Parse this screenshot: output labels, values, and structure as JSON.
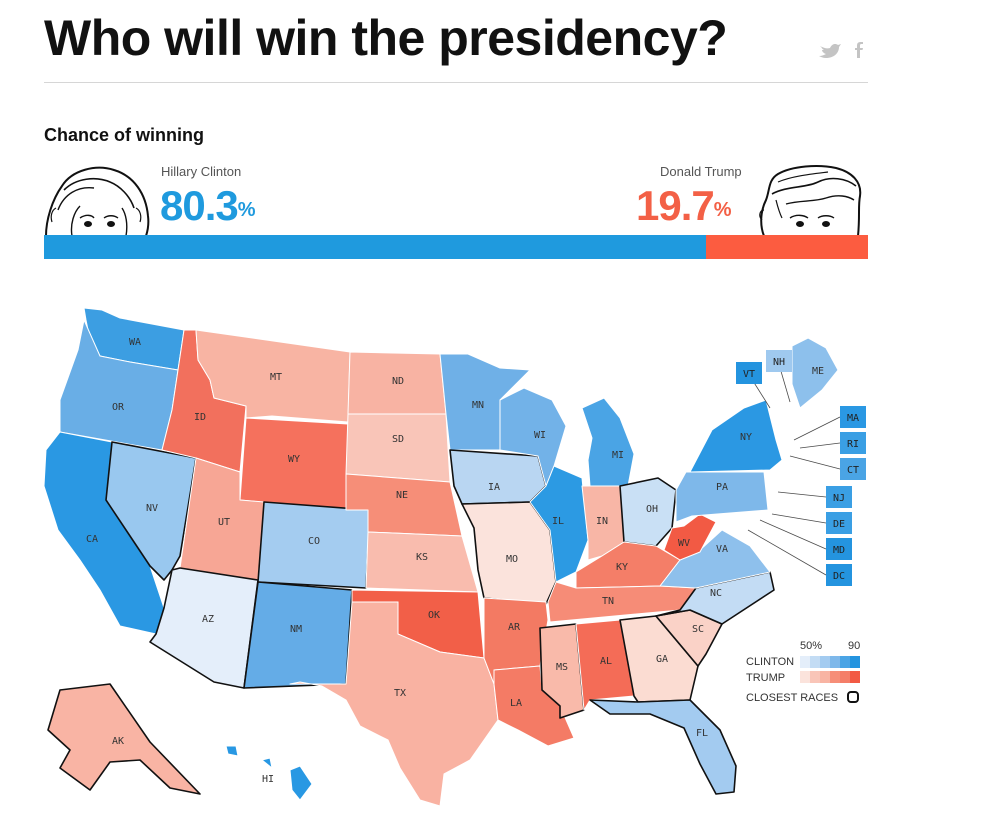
{
  "header": {
    "title": "Who will win the presidency?",
    "share_icons": [
      "twitter-icon",
      "facebook-icon"
    ]
  },
  "chance": {
    "heading": "Chance of winning",
    "clinton": {
      "name": "Hillary Clinton",
      "pct": "80.3",
      "pct_value": 80.3,
      "color": "#1f9ade"
    },
    "trump": {
      "name": "Donald Trump",
      "pct": "19.7",
      "pct_value": 19.7,
      "color": "#fc5c40"
    },
    "percent_sign": "%"
  },
  "map": {
    "states": [
      {
        "code": "WA",
        "color": "#3c9ee2"
      },
      {
        "code": "OR",
        "color": "#69aee6"
      },
      {
        "code": "CA",
        "color": "#2a98e3"
      },
      {
        "code": "NV",
        "color": "#99c8ef"
      },
      {
        "code": "ID",
        "color": "#f2705d"
      },
      {
        "code": "MT",
        "color": "#f8b4a3"
      },
      {
        "code": "WY",
        "color": "#f5715d"
      },
      {
        "code": "UT",
        "color": "#f7a695"
      },
      {
        "code": "AZ",
        "color": "#e4eefa"
      },
      {
        "code": "CO",
        "color": "#a4ccf0"
      },
      {
        "code": "NM",
        "color": "#64ace7"
      },
      {
        "code": "ND",
        "color": "#f8b3a3"
      },
      {
        "code": "SD",
        "color": "#f9c5b8"
      },
      {
        "code": "NE",
        "color": "#f68e78"
      },
      {
        "code": "KS",
        "color": "#f9bcae"
      },
      {
        "code": "OK",
        "color": "#f25f48"
      },
      {
        "code": "TX",
        "color": "#f9b2a2"
      },
      {
        "code": "MN",
        "color": "#6fb0e7"
      },
      {
        "code": "IA",
        "color": "#b9d6f2"
      },
      {
        "code": "MO",
        "color": "#fbe3dc"
      },
      {
        "code": "AR",
        "color": "#f37a63"
      },
      {
        "code": "LA",
        "color": "#f47b65"
      },
      {
        "code": "WI",
        "color": "#72b2e8"
      },
      {
        "code": "IL",
        "color": "#2c9ae3"
      },
      {
        "code": "MI",
        "color": "#4aa4e5"
      },
      {
        "code": "IN",
        "color": "#f8b6a6"
      },
      {
        "code": "OH",
        "color": "#c9e0f5"
      },
      {
        "code": "KY",
        "color": "#f47e68"
      },
      {
        "code": "TN",
        "color": "#f68c77"
      },
      {
        "code": "MS",
        "color": "#f9baaa"
      },
      {
        "code": "AL",
        "color": "#f46c57"
      },
      {
        "code": "GA",
        "color": "#fbdcd2"
      },
      {
        "code": "FL",
        "color": "#a3cbf0"
      },
      {
        "code": "SC",
        "color": "#fad2c7"
      },
      {
        "code": "NC",
        "color": "#c3dcf4"
      },
      {
        "code": "VA",
        "color": "#8ec0ec"
      },
      {
        "code": "WV",
        "color": "#f25a44"
      },
      {
        "code": "PA",
        "color": "#7eb8ea"
      },
      {
        "code": "NY",
        "color": "#2b98e3"
      },
      {
        "code": "ME",
        "color": "#8dc0ec"
      },
      {
        "code": "AK",
        "color": "#f9b4a4"
      },
      {
        "code": "HI",
        "color": "#2898e3"
      }
    ],
    "box_states": [
      {
        "code": "VT",
        "color": "#2494df"
      },
      {
        "code": "NH",
        "color": "#9fc9ef"
      },
      {
        "code": "MA",
        "color": "#2a98e3"
      },
      {
        "code": "RI",
        "color": "#3a9fe4"
      },
      {
        "code": "CT",
        "color": "#4aa4e5"
      },
      {
        "code": "NJ",
        "color": "#3a9fe4"
      },
      {
        "code": "DE",
        "color": "#3a9fe4"
      },
      {
        "code": "MD",
        "color": "#2494df"
      },
      {
        "code": "DC",
        "color": "#2494df"
      }
    ],
    "closest_races": [
      "AZ",
      "CO",
      "NM",
      "MO",
      "MS",
      "GA",
      "SC",
      "NC",
      "FL",
      "IA",
      "OH",
      "NV",
      "AK"
    ]
  },
  "legend": {
    "scale_low": "50%",
    "scale_high": "90",
    "clinton_label": "CLINTON",
    "trump_label": "TRUMP",
    "closest_label": "CLOSEST RACES",
    "clinton_colors": [
      "#e4eefa",
      "#c3dcf4",
      "#a3cbf0",
      "#7eb8ea",
      "#4aa4e5",
      "#2494df"
    ],
    "trump_colors": [
      "#fbe3dc",
      "#f9c5b8",
      "#f8b4a3",
      "#f68e78",
      "#f47e68",
      "#f25a44"
    ]
  }
}
